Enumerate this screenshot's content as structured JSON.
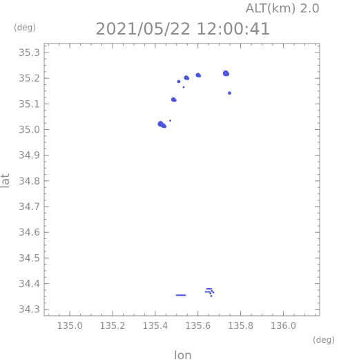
{
  "chart_data": {
    "type": "scatter",
    "title": "2021/05/22 12:00:41",
    "altitude_label": "ALT(km)  2.0",
    "xlabel": "lon",
    "ylabel": "lat",
    "x_unit": "(deg)",
    "y_unit": "(deg)",
    "xlim": [
      134.88,
      136.17
    ],
    "ylim": [
      34.275,
      35.335
    ],
    "x_ticks": [
      135.0,
      135.2,
      135.4,
      135.6,
      135.8,
      136.0
    ],
    "x_tick_labels": [
      "135.0",
      "135.2",
      "135.4",
      "135.6",
      "135.8",
      "136.0"
    ],
    "y_ticks": [
      34.3,
      34.4,
      34.5,
      34.6,
      34.7,
      34.8,
      34.9,
      35.0,
      35.1,
      35.2,
      35.3
    ],
    "y_tick_labels": [
      "34.3",
      "34.4",
      "34.5",
      "34.6",
      "34.7",
      "34.8",
      "34.9",
      "35.0",
      "35.1",
      "35.2",
      "35.3"
    ],
    "grid": false,
    "point_color": "#4a55e6",
    "clusters": [
      {
        "lon": 135.425,
        "lat": 35.022,
        "size": "large"
      },
      {
        "lon": 135.438,
        "lat": 35.015,
        "size": "medium"
      },
      {
        "lon": 135.47,
        "lat": 35.035,
        "size": "tiny"
      },
      {
        "lon": 135.485,
        "lat": 35.117,
        "size": "medium"
      },
      {
        "lon": 135.51,
        "lat": 35.187,
        "size": "small"
      },
      {
        "lon": 135.533,
        "lat": 35.165,
        "size": "tiny"
      },
      {
        "lon": 135.545,
        "lat": 35.202,
        "size": "medium"
      },
      {
        "lon": 135.6,
        "lat": 35.212,
        "size": "medium"
      },
      {
        "lon": 135.73,
        "lat": 35.219,
        "size": "large"
      },
      {
        "lon": 135.748,
        "lat": 35.142,
        "size": "small"
      },
      {
        "lon": 135.51,
        "lat": 34.355,
        "size": "dash"
      },
      {
        "lon": 135.53,
        "lat": 34.355,
        "size": "dash"
      },
      {
        "lon": 135.645,
        "lat": 34.368,
        "size": "dash"
      },
      {
        "lon": 135.658,
        "lat": 34.362,
        "size": "tiny"
      },
      {
        "lon": 135.665,
        "lat": 34.372,
        "size": "tiny"
      },
      {
        "lon": 135.672,
        "lat": 34.366,
        "size": "tiny"
      },
      {
        "lon": 135.662,
        "lat": 34.352,
        "size": "tiny"
      },
      {
        "lon": 135.652,
        "lat": 34.38,
        "size": "dash"
      }
    ]
  }
}
